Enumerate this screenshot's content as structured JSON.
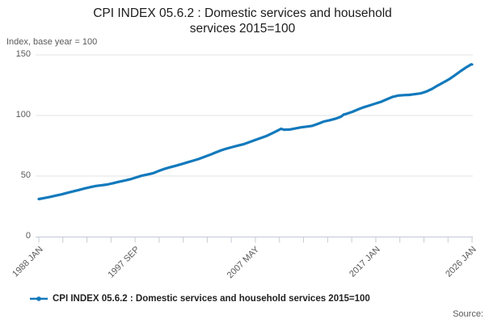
{
  "header": {
    "title_lines": [
      "CPI INDEX 05.6.2 : Domestic services and household",
      "services 2015=100"
    ],
    "subtitle": "Index, base year = 100"
  },
  "legend": {
    "label": "CPI INDEX 05.6.2 : Domestic services and household services 2015=100"
  },
  "source": {
    "label": "Source:"
  },
  "colors": {
    "line": "#1279bc",
    "grid": "#e3e3e3",
    "axis": "#c3cbd6",
    "muted_text": "#595959",
    "title_text": "#1c1c1c"
  },
  "chart_data": {
    "type": "line",
    "title": "CPI INDEX 05.6.2 : Domestic services and household services 2015=100",
    "ylabel": "Index, base year = 100",
    "xlabel": "",
    "ylim": [
      0,
      150
    ],
    "y_ticks": [
      0,
      50,
      100,
      150
    ],
    "grid": "horizontal",
    "legend_position": "bottom-left",
    "x_start": "1988 JAN",
    "x_end": "2026 JAN",
    "x_tick_labels": [
      "1988 JAN",
      "1997 SEP",
      "2007 MAY",
      "2017 JAN",
      "2026 JAN"
    ],
    "x_total_ticks": 19,
    "x_label_tick_indices": [
      0,
      4,
      9,
      14,
      18
    ],
    "series": [
      {
        "name": "CPI INDEX 05.6.2 : Domestic services and household services 2015=100",
        "color": "#1279bc",
        "x_unit": "months_from_1988_JAN",
        "points": [
          [
            0,
            31.0
          ],
          [
            6,
            31.9
          ],
          [
            12,
            32.8
          ],
          [
            18,
            33.9
          ],
          [
            24,
            34.9
          ],
          [
            30,
            36.1
          ],
          [
            36,
            37.3
          ],
          [
            42,
            38.5
          ],
          [
            48,
            39.7
          ],
          [
            54,
            40.8
          ],
          [
            60,
            41.8
          ],
          [
            66,
            42.4
          ],
          [
            72,
            43.0
          ],
          [
            78,
            44.1
          ],
          [
            84,
            45.2
          ],
          [
            90,
            46.2
          ],
          [
            96,
            47.3
          ],
          [
            102,
            48.7
          ],
          [
            108,
            50.2
          ],
          [
            114,
            51.2
          ],
          [
            120,
            52.3
          ],
          [
            126,
            54.1
          ],
          [
            132,
            55.9
          ],
          [
            138,
            57.2
          ],
          [
            144,
            58.5
          ],
          [
            150,
            59.8
          ],
          [
            156,
            61.2
          ],
          [
            162,
            62.6
          ],
          [
            168,
            64.0
          ],
          [
            174,
            65.7
          ],
          [
            180,
            67.5
          ],
          [
            186,
            69.4
          ],
          [
            192,
            71.3
          ],
          [
            198,
            72.7
          ],
          [
            204,
            74.0
          ],
          [
            210,
            75.2
          ],
          [
            216,
            76.4
          ],
          [
            222,
            78.1
          ],
          [
            228,
            79.8
          ],
          [
            234,
            81.5
          ],
          [
            240,
            83.2
          ],
          [
            246,
            85.5
          ],
          [
            252,
            87.8
          ],
          [
            255,
            89.0
          ],
          [
            258,
            88.3
          ],
          [
            264,
            88.4
          ],
          [
            270,
            89.3
          ],
          [
            276,
            90.2
          ],
          [
            282,
            90.8
          ],
          [
            288,
            91.5
          ],
          [
            294,
            93.2
          ],
          [
            300,
            95.0
          ],
          [
            306,
            96.1
          ],
          [
            312,
            97.3
          ],
          [
            318,
            99.0
          ],
          [
            321,
            100.8
          ],
          [
            324,
            101.4
          ],
          [
            330,
            103.0
          ],
          [
            336,
            105.0
          ],
          [
            342,
            106.8
          ],
          [
            348,
            108.3
          ],
          [
            354,
            109.7
          ],
          [
            360,
            111.3
          ],
          [
            366,
            113.3
          ],
          [
            372,
            115.3
          ],
          [
            378,
            116.4
          ],
          [
            384,
            116.8
          ],
          [
            390,
            117.0
          ],
          [
            396,
            117.6
          ],
          [
            402,
            118.3
          ],
          [
            408,
            119.8
          ],
          [
            414,
            122.0
          ],
          [
            420,
            124.8
          ],
          [
            426,
            127.3
          ],
          [
            432,
            130.0
          ],
          [
            438,
            133.2
          ],
          [
            444,
            136.7
          ],
          [
            450,
            139.8
          ],
          [
            453,
            141.2
          ],
          [
            455,
            142.2
          ],
          [
            456,
            142.1
          ]
        ]
      }
    ]
  }
}
